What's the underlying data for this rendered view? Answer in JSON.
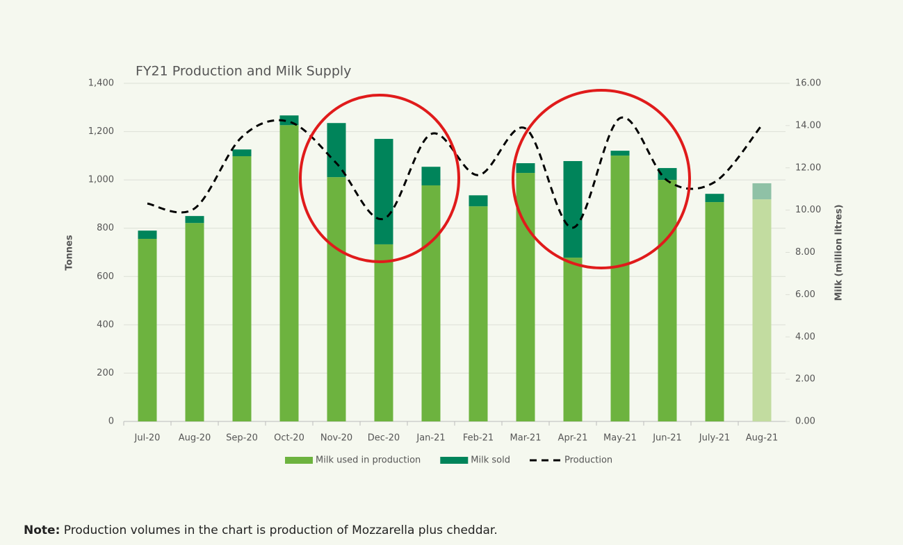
{
  "chart_data": {
    "type": "bar",
    "title": "FY21 Production and Milk Supply",
    "categories": [
      "Jul-20",
      "Aug-20",
      "Sep-20",
      "Oct-20",
      "Nov-20",
      "Dec-20",
      "Jan-21",
      "Feb-21",
      "Mar-21",
      "Apr-21",
      "May-21",
      "Jun-21",
      "July-21",
      "Aug-21"
    ],
    "y_label": "Tonnes",
    "y2_label": "Milk (million litres)",
    "ylim": [
      0,
      1400
    ],
    "yticks": [
      0,
      200,
      400,
      600,
      800,
      {
        "value": 1000,
        "label": "1,000"
      },
      {
        "value": 1200,
        "label": "1,200"
      },
      {
        "value": 1400,
        "label": "1,400"
      }
    ],
    "y2lim": [
      0,
      16
    ],
    "y2ticks": [
      {
        "value": 0,
        "label": "0.00"
      },
      {
        "value": 2,
        "label": "2.00"
      },
      {
        "value": 4,
        "label": "4.00"
      },
      {
        "value": 6,
        "label": "6.00"
      },
      {
        "value": 8,
        "label": "8.00"
      },
      {
        "value": 10,
        "label": "10.00"
      },
      {
        "value": 12,
        "label": "12.00"
      },
      {
        "value": 14,
        "label": "14.00"
      },
      {
        "value": 16,
        "label": "16.00"
      }
    ],
    "grid": true,
    "legend": "bottom",
    "series": [
      {
        "name": "Milk used in production",
        "type": "bar",
        "axis": "y2",
        "color": "#6db33f",
        "colors": [
          "#6db33f",
          "#6db33f",
          "#6db33f",
          "#6db33f",
          "#6db33f",
          "#6db33f",
          "#6db33f",
          "#6db33f",
          "#6db33f",
          "#6db33f",
          "#6db33f",
          "#6db33f",
          "#6db33f",
          "#c2dca0"
        ],
        "values": [
          8.64,
          9.39,
          12.55,
          14.02,
          11.56,
          8.38,
          11.17,
          10.18,
          11.76,
          7.75,
          12.58,
          11.43,
          10.38,
          10.51
        ]
      },
      {
        "name": "Milk sold",
        "type": "bar",
        "axis": "y2",
        "color": "#00845a",
        "colors": [
          "#00845a",
          "#00845a",
          "#00845a",
          "#00845a",
          "#00845a",
          "#00845a",
          "#00845a",
          "#00845a",
          "#00845a",
          "#00845a",
          "#00845a",
          "#00845a",
          "#00845a",
          "#8fc1a6"
        ],
        "values": [
          0.39,
          0.33,
          0.32,
          0.46,
          2.56,
          4.99,
          0.88,
          0.52,
          0.46,
          4.57,
          0.23,
          0.56,
          0.39,
          0.76
        ]
      },
      {
        "name": "Production",
        "type": "line",
        "axis": "y",
        "color": "#000000",
        "dashed": true,
        "values": [
          902,
          882,
          1178,
          1241,
          1069,
          839,
          1190,
          1020,
          1213,
          802,
          1256,
          997,
          991,
          1227
        ]
      }
    ]
  },
  "note": {
    "label": "Note:",
    "text": "Production volumes in the chart is production of Mozzarella plus cheddar."
  }
}
